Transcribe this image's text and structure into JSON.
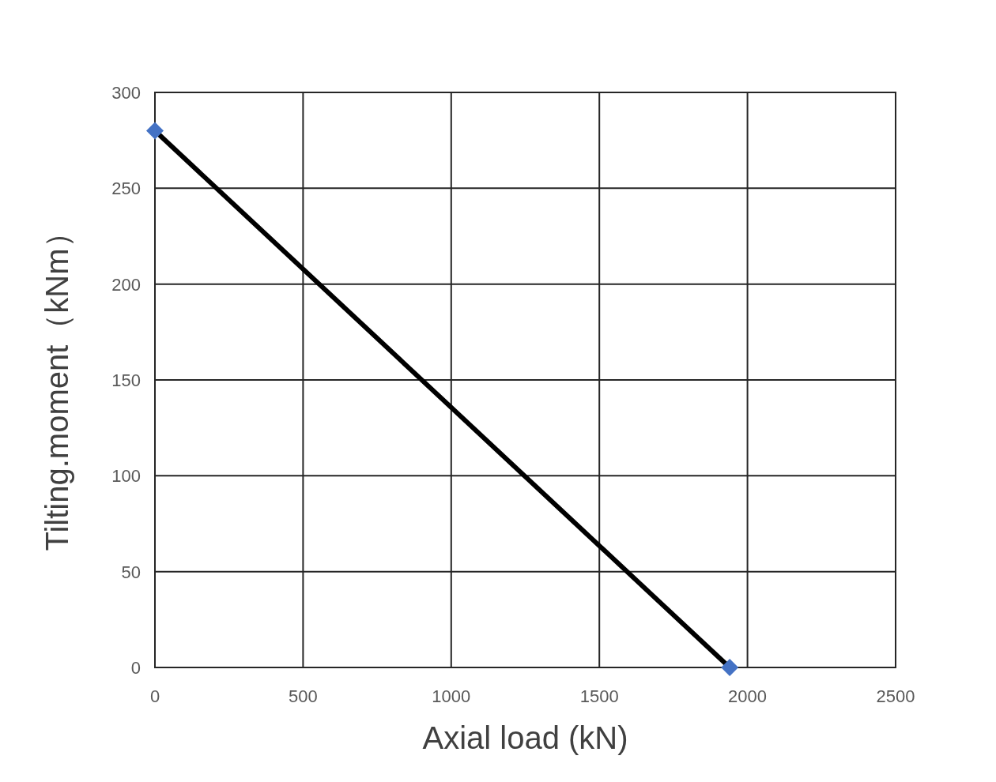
{
  "chart_data": {
    "type": "line",
    "xlabel": "Axial load (kN)",
    "ylabel": "Tilting.moment（kNm）",
    "x": [
      0,
      1940
    ],
    "series": [
      {
        "color": "#000000",
        "values": [
          280,
          0
        ],
        "marker": "none",
        "line_style": "solid"
      },
      {
        "type": "scatter",
        "color": "#4472c4",
        "values": [
          280,
          0
        ],
        "marker": "diamond"
      }
    ],
    "xlim": [
      0,
      2500
    ],
    "xticks": [
      0,
      500,
      1000,
      1500,
      2000,
      2500
    ],
    "ylim": [
      0,
      300
    ],
    "yticks": [
      0,
      50,
      100,
      150,
      200,
      250,
      300
    ],
    "grid": true
  }
}
